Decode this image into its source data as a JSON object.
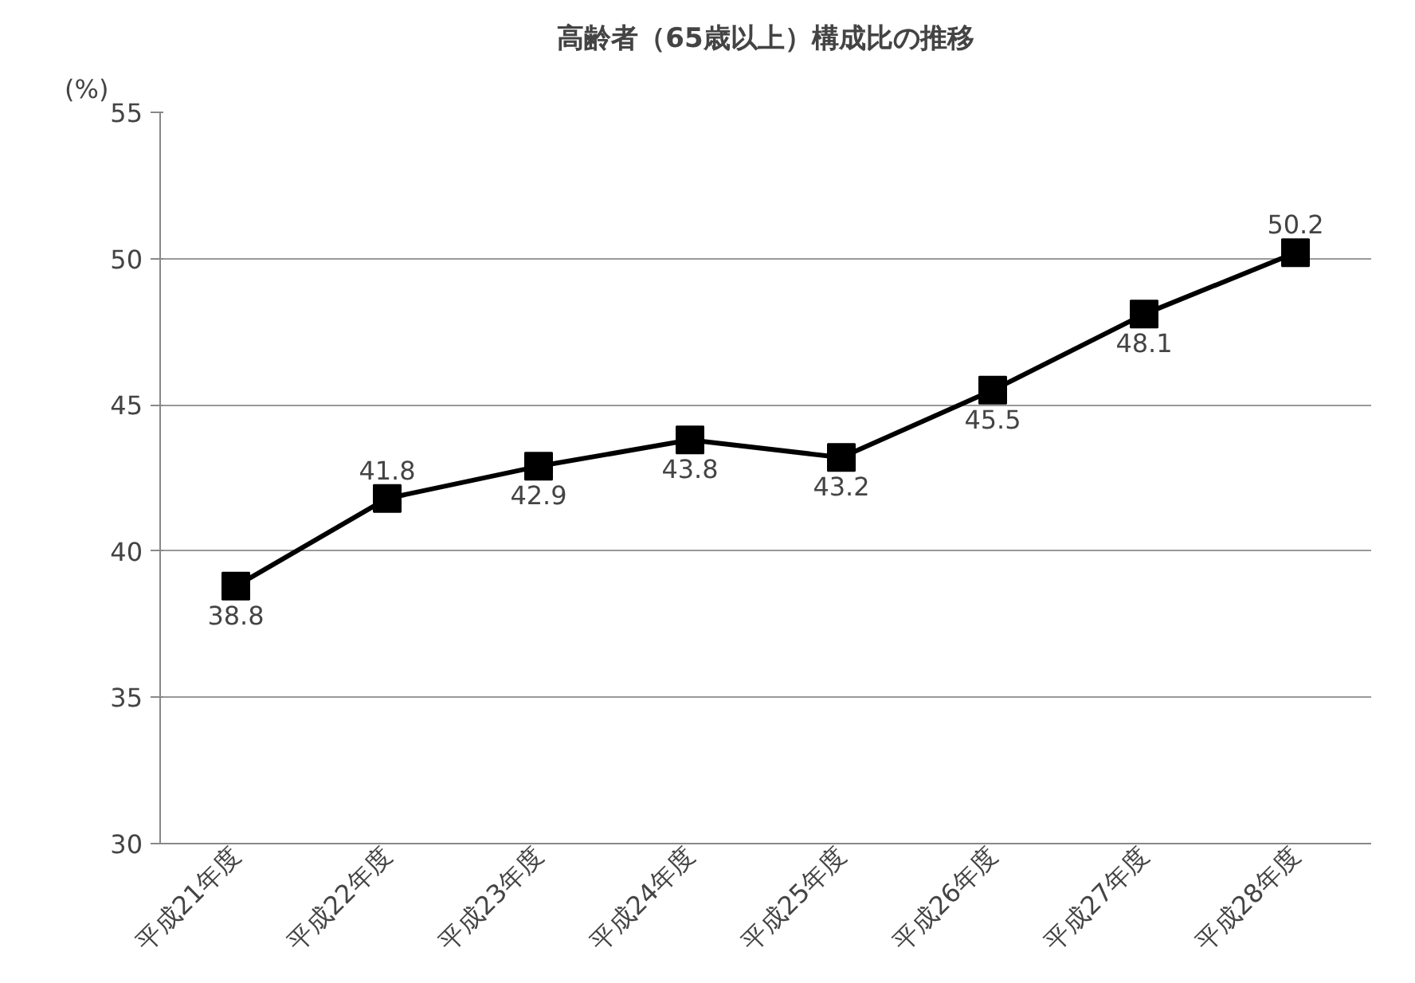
{
  "chart_data": {
    "type": "line",
    "title": "高齢者（65歳以上）構成比の推移",
    "ylabel": "(%)",
    "categories": [
      "平成21年度",
      "平成22年度",
      "平成23年度",
      "平成24年度",
      "平成25年度",
      "平成26年度",
      "平成27年度",
      "平成28年度"
    ],
    "series": [
      {
        "color": "#000000",
        "values": [
          38.8,
          41.8,
          42.9,
          43.8,
          43.2,
          45.5,
          48.1,
          50.2
        ]
      }
    ],
    "ylim": [
      30,
      55
    ],
    "yticks": [
      30,
      35,
      40,
      45,
      50,
      55
    ],
    "grid": "y",
    "marker": "square",
    "line_style": "solid",
    "data_labels": true
  }
}
